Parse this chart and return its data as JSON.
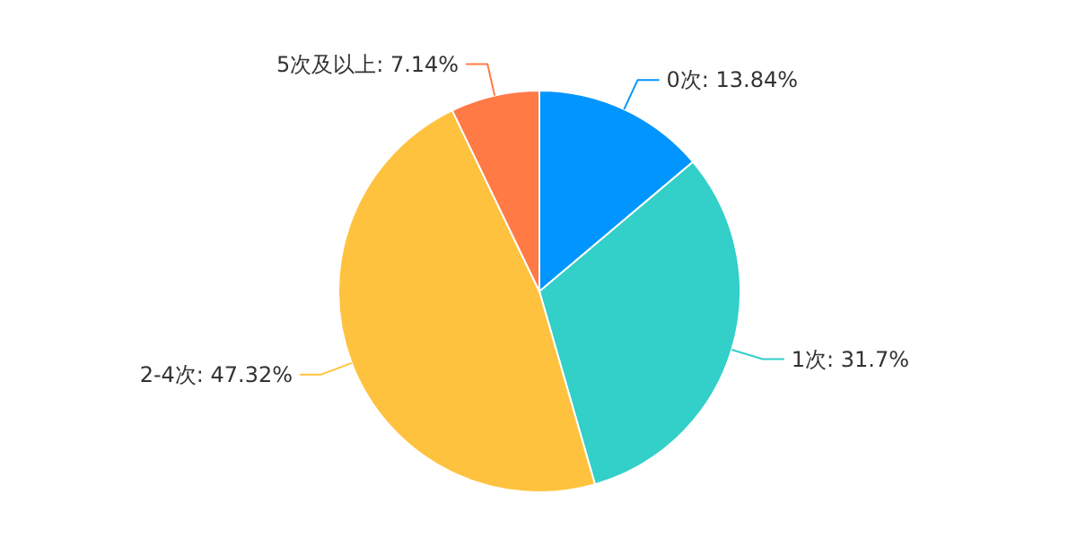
{
  "chart_data": {
    "type": "pie",
    "categories": [
      "0次",
      "1次",
      "2-4次",
      "5次及以上"
    ],
    "values": [
      13.84,
      31.7,
      47.32,
      7.14
    ],
    "value_labels": [
      "13.84%",
      "31.7%",
      "47.32%",
      "7.14%"
    ],
    "colors": [
      "#0095ff",
      "#33cfc9",
      "#ffc23f",
      "#ff7a45"
    ],
    "legend": false
  }
}
